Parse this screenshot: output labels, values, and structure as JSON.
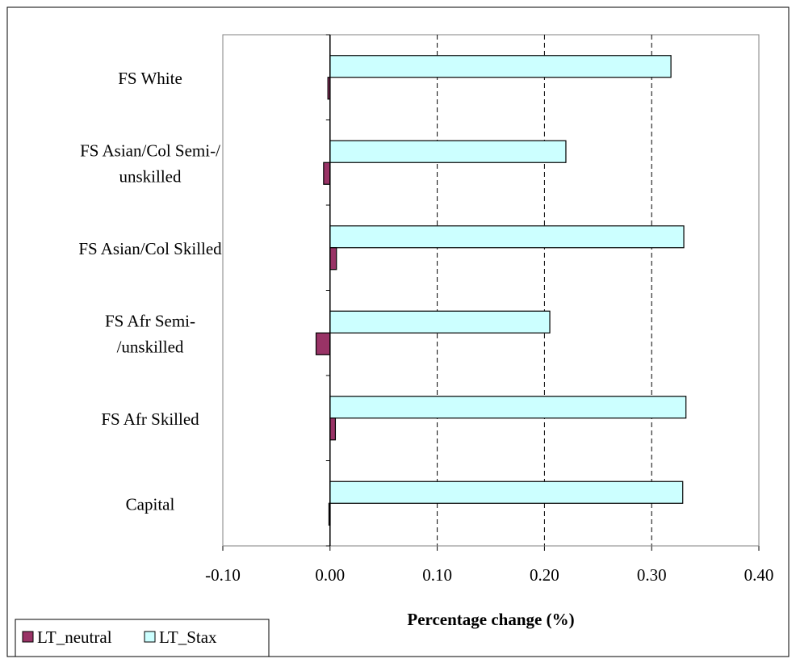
{
  "chart_data": {
    "type": "bar",
    "orientation": "horizontal",
    "title": "",
    "xlabel": "Percentage change (%)",
    "ylabel": "",
    "categories": [
      "FS White",
      "FS Asian/Col Semi-/\nunskilled",
      "FS Asian/Col Skilled",
      "FS Afr Semi-\n/unskilled",
      "FS Afr  Skilled",
      "Capital"
    ],
    "series": [
      {
        "name": "LT_neutral",
        "color": "#993366",
        "values": [
          -0.002,
          -0.006,
          0.006,
          -0.013,
          0.005,
          -0.001
        ]
      },
      {
        "name": "LT_Stax",
        "color": "#CCFFFF",
        "values": [
          0.318,
          0.22,
          0.33,
          0.205,
          0.332,
          0.329
        ]
      }
    ],
    "xlim": [
      -0.1,
      0.4
    ],
    "xticks": [
      "-0.10",
      "0.00",
      "0.10",
      "0.20",
      "0.30",
      "0.40"
    ],
    "grid": "vertical dashed",
    "legend_position": "bottom-left"
  }
}
